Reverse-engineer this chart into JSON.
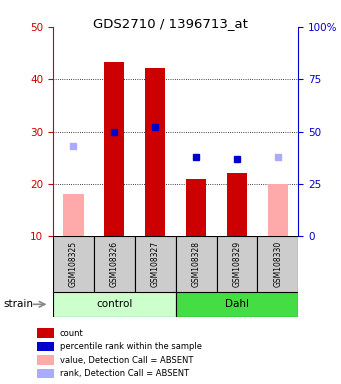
{
  "title": "GDS2710 / 1396713_at",
  "samples": [
    "GSM108325",
    "GSM108326",
    "GSM108327",
    "GSM108328",
    "GSM108329",
    "GSM108330"
  ],
  "bar_values": [
    null,
    43.3,
    42.1,
    21.0,
    22.0,
    null
  ],
  "bar_absent_values": [
    18.0,
    null,
    null,
    null,
    null,
    20.0
  ],
  "rank_values_pct": [
    null,
    50.0,
    52.0,
    38.0,
    37.0,
    null
  ],
  "rank_absent_values_pct": [
    43.0,
    null,
    null,
    null,
    null,
    38.0
  ],
  "bar_color": "#cc0000",
  "bar_absent_color": "#ffaaaa",
  "rank_color": "#0000cc",
  "rank_absent_color": "#aaaaff",
  "ylim_left": [
    10,
    50
  ],
  "ylim_right": [
    0,
    100
  ],
  "yticks_left": [
    10,
    20,
    30,
    40,
    50
  ],
  "yticks_right": [
    0,
    25,
    50,
    75,
    100
  ],
  "ytick_labels_right": [
    "0",
    "25",
    "50",
    "75",
    "100%"
  ],
  "bar_width": 0.5,
  "legend_items": [
    {
      "color": "#cc0000",
      "label": "count"
    },
    {
      "color": "#0000cc",
      "label": "percentile rank within the sample"
    },
    {
      "color": "#ffaaaa",
      "label": "value, Detection Call = ABSENT"
    },
    {
      "color": "#aaaaff",
      "label": "rank, Detection Call = ABSENT"
    }
  ],
  "left_axis_color": "#cc0000",
  "right_axis_color": "#0000cc",
  "strain_label": "strain",
  "grid_yticks": [
    20,
    30,
    40
  ],
  "control_color": "#ccffcc",
  "dahl_color": "#44dd44",
  "label_bg_color": "#cccccc"
}
